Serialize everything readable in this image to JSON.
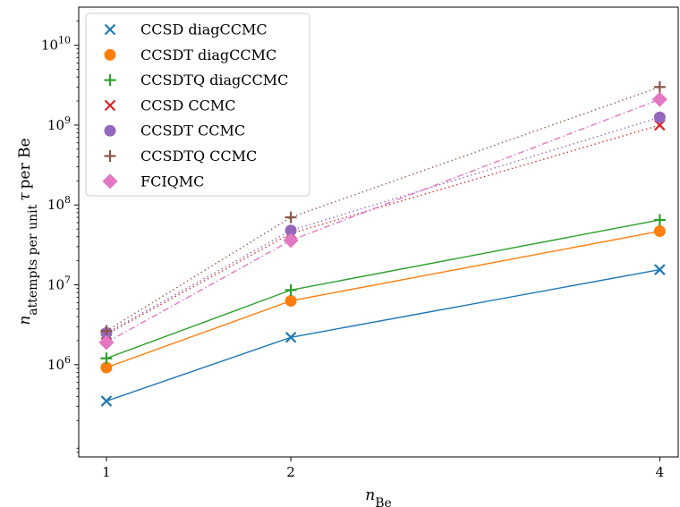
{
  "chart_data": {
    "type": "line",
    "xscale": "linear",
    "yscale": "log",
    "xlabel_main": "n",
    "xlabel_sub": "Be",
    "ylabel_main": "n",
    "ylabel_sub": "attempts per unit",
    "ylabel_tau": "τ",
    "ylabel_tail": "per Be",
    "x": [
      1,
      2,
      4
    ],
    "xlim": [
      0.85,
      4.1
    ],
    "ylim": [
      70000,
      30000000000
    ],
    "xticks": [
      {
        "value": 1,
        "label": "1"
      },
      {
        "value": 2,
        "label": "2"
      },
      {
        "value": 4,
        "label": "4"
      }
    ],
    "yticks": [
      {
        "value": 1000000,
        "base": "10",
        "exp": "6"
      },
      {
        "value": 10000000,
        "base": "10",
        "exp": "7"
      },
      {
        "value": 100000000,
        "base": "10",
        "exp": "8"
      },
      {
        "value": 1000000000,
        "base": "10",
        "exp": "9"
      },
      {
        "value": 10000000000,
        "base": "10",
        "exp": "10"
      }
    ],
    "legend_position": "top-left",
    "grid": false,
    "series": [
      {
        "name": "CCSD diagCCMC",
        "values": [
          350000,
          2200000,
          15500000
        ],
        "color": "#1f77b4",
        "marker": "x",
        "line": "solid"
      },
      {
        "name": "CCSDT diagCCMC",
        "values": [
          920000,
          6300000,
          47000000
        ],
        "color": "#ff7f0e",
        "marker": "circle",
        "line": "solid"
      },
      {
        "name": "CCSDTQ diagCCMC",
        "values": [
          1200000,
          8600000,
          65000000
        ],
        "color": "#2ca02c",
        "marker": "plus",
        "line": "solid"
      },
      {
        "name": "CCSD CCMC",
        "values": [
          2400000,
          44000000,
          1000000000
        ],
        "color": "#d62728",
        "marker": "x",
        "line": "dotted"
      },
      {
        "name": "CCSDT CCMC",
        "values": [
          2500000,
          48000000,
          1250000000
        ],
        "color": "#9467bd",
        "marker": "circle",
        "line": "dotted"
      },
      {
        "name": "CCSDTQ CCMC",
        "values": [
          2650000,
          70000000,
          3000000000
        ],
        "color": "#8c564b",
        "marker": "plus",
        "line": "dotted"
      },
      {
        "name": "FCIQMC",
        "values": [
          1900000,
          36000000,
          2100000000
        ],
        "color": "#e377c2",
        "marker": "diamond",
        "line": "dashdot"
      }
    ]
  }
}
